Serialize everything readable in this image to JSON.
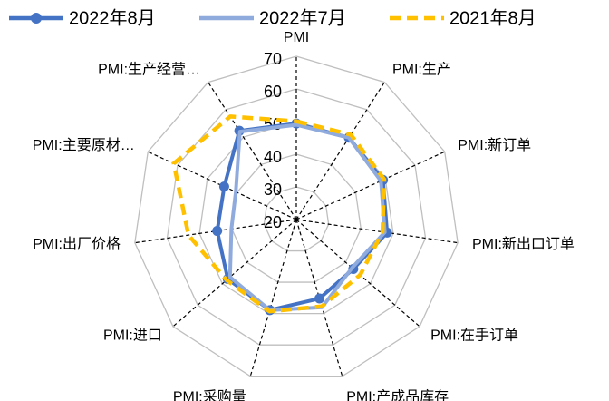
{
  "chart_data": {
    "type": "radar",
    "categories": [
      "PMI",
      "PMI:生产",
      "PMI:新订单",
      "PMI:新出口订单",
      "PMI:在手订单",
      "PMI:产成品库存",
      "PMI:采购量",
      "PMI:进口",
      "PMI:出厂价格",
      "PMI:主要原材…",
      "PMI:生产经营…"
    ],
    "series": [
      {
        "name": "2022年8月",
        "color": "#4472c4",
        "dashed": false,
        "markers": true,
        "values": [
          49.4,
          49.8,
          49.2,
          48.1,
          43.1,
          45.2,
          48.9,
          47.8,
          44.5,
          44.3,
          52.3
        ]
      },
      {
        "name": "2022年7月",
        "color": "#8faadc",
        "dashed": false,
        "markers": false,
        "values": [
          49.0,
          49.8,
          48.5,
          47.4,
          42.6,
          48.0,
          48.9,
          46.9,
          40.1,
          40.4,
          52.0
        ]
      },
      {
        "name": "2021年8月",
        "color": "#ffc000",
        "dashed": true,
        "markers": false,
        "values": [
          50.1,
          50.9,
          49.6,
          46.7,
          45.9,
          47.7,
          49.3,
          48.3,
          53.4,
          61.3,
          57.5
        ]
      }
    ],
    "ylim": [
      20,
      70
    ],
    "yticks": [
      20,
      30,
      40,
      50,
      60,
      70
    ],
    "grid": true,
    "legend": "top"
  }
}
